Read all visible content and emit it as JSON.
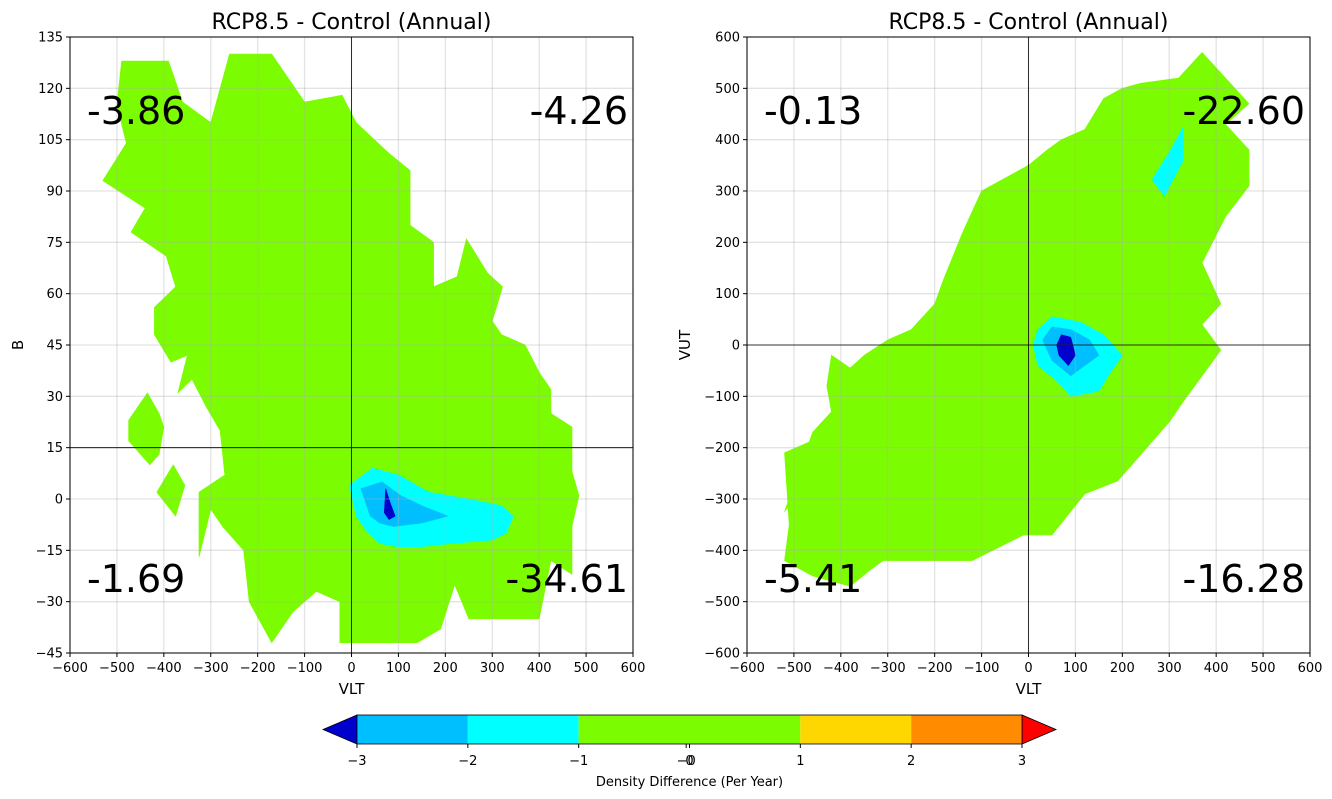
{
  "chart_data": [
    {
      "type": "contour",
      "title": "RCP8.5 - Control (Annual)",
      "xlabel": "VLT",
      "ylabel": "B",
      "xlim": [
        -600,
        600
      ],
      "ylim": [
        -45,
        135
      ],
      "xticks": [
        -600,
        -500,
        -400,
        -300,
        -200,
        -100,
        0,
        100,
        200,
        300,
        400,
        500,
        600
      ],
      "yticks": [
        -45,
        -30,
        -15,
        0,
        15,
        30,
        45,
        60,
        75,
        90,
        105,
        120,
        135
      ],
      "grid": true,
      "reference_lines": {
        "x": 0,
        "y": 15
      },
      "quadrant_values": {
        "top_left": "-3.86",
        "top_right": "-4.26",
        "bottom_left": "-1.69",
        "bottom_right": "-34.61"
      },
      "regions": [
        {
          "level": "-1 to 1",
          "color": "#7cfc00",
          "polygon": [
            [
              -490,
              128
            ],
            [
              -390,
              128
            ],
            [
              -360,
              116
            ],
            [
              -300,
              110
            ],
            [
              -260,
              130
            ],
            [
              -170,
              130
            ],
            [
              -100,
              116
            ],
            [
              -20,
              118
            ],
            [
              10,
              110
            ],
            [
              80,
              101
            ],
            [
              125,
              96
            ],
            [
              125,
              80
            ],
            [
              175,
              75
            ],
            [
              175,
              62
            ],
            [
              225,
              65
            ],
            [
              245,
              76
            ],
            [
              290,
              66
            ],
            [
              322,
              62
            ],
            [
              300,
              52
            ],
            [
              320,
              48
            ],
            [
              370,
              45
            ],
            [
              400,
              37
            ],
            [
              425,
              32
            ],
            [
              425,
              25
            ],
            [
              470,
              21
            ],
            [
              470,
              8
            ],
            [
              485,
              1
            ],
            [
              470,
              -8
            ],
            [
              470,
              -22
            ],
            [
              425,
              -18
            ],
            [
              400,
              -35
            ],
            [
              250,
              -35
            ],
            [
              220,
              -25
            ],
            [
              190,
              -38
            ],
            [
              140,
              -42
            ],
            [
              60,
              -42
            ],
            [
              -25,
              -42
            ],
            [
              -25,
              -30
            ],
            [
              -75,
              -27
            ],
            [
              -125,
              -33
            ],
            [
              -170,
              -42
            ],
            [
              -218,
              -30
            ],
            [
              -230,
              -15
            ],
            [
              -275,
              -8
            ],
            [
              -300,
              -3
            ],
            [
              -325,
              -17
            ],
            [
              -325,
              2
            ],
            [
              -270,
              7
            ],
            [
              -280,
              20
            ],
            [
              -310,
              27
            ],
            [
              -340,
              35
            ],
            [
              -370,
              31
            ],
            [
              -350,
              42
            ],
            [
              -385,
              40
            ],
            [
              -420,
              48
            ],
            [
              -420,
              56
            ],
            [
              -375,
              62
            ],
            [
              -395,
              71
            ],
            [
              -470,
              78
            ],
            [
              -440,
              85
            ],
            [
              -530,
              93
            ],
            [
              -480,
              104
            ],
            [
              -500,
              115
            ]
          ]
        },
        {
          "level": "-1 to 1",
          "color": "#7cfc00",
          "polygon": [
            [
              -435,
              31
            ],
            [
              -410,
              25
            ],
            [
              -400,
              21
            ],
            [
              -410,
              13
            ],
            [
              -430,
              10
            ],
            [
              -475,
              17
            ],
            [
              -475,
              23
            ]
          ]
        },
        {
          "level": "-1 to 1",
          "color": "#7cfc00",
          "polygon": [
            [
              -380,
              10
            ],
            [
              -355,
              4
            ],
            [
              -375,
              -5
            ],
            [
              -415,
              2
            ]
          ]
        },
        {
          "level": "-2 to -1",
          "color": "#00ffff",
          "polygon": [
            [
              -5,
              4
            ],
            [
              45,
              9
            ],
            [
              100,
              7
            ],
            [
              165,
              2
            ],
            [
              250,
              0
            ],
            [
              320,
              -2
            ],
            [
              345,
              -5
            ],
            [
              330,
              -10
            ],
            [
              300,
              -12
            ],
            [
              215,
              -13
            ],
            [
              145,
              -14
            ],
            [
              100,
              -14
            ],
            [
              60,
              -13
            ],
            [
              30,
              -9
            ],
            [
              10,
              -5
            ]
          ]
        },
        {
          "level": "-3 to -2",
          "color": "#00bfff",
          "polygon": [
            [
              20,
              3
            ],
            [
              65,
              5
            ],
            [
              105,
              1
            ],
            [
              150,
              -2
            ],
            [
              205,
              -5
            ],
            [
              150,
              -7
            ],
            [
              90,
              -8
            ],
            [
              60,
              -7
            ],
            [
              40,
              -5
            ]
          ]
        },
        {
          "level": "< -3",
          "color": "#0000cd",
          "polygon": [
            [
              73,
              3
            ],
            [
              82,
              -1
            ],
            [
              93,
              -5
            ],
            [
              80,
              -6
            ],
            [
              70,
              -4
            ]
          ]
        }
      ]
    },
    {
      "type": "contour",
      "title": "RCP8.5 - Control (Annual)",
      "xlabel": "VLT",
      "ylabel": "VUT",
      "xlim": [
        -600,
        600
      ],
      "ylim": [
        -600,
        600
      ],
      "xticks": [
        -600,
        -500,
        -400,
        -300,
        -200,
        -100,
        0,
        100,
        200,
        300,
        400,
        500,
        600
      ],
      "yticks": [
        -600,
        -500,
        -400,
        -300,
        -200,
        -100,
        0,
        100,
        200,
        300,
        400,
        500,
        600
      ],
      "grid": true,
      "reference_lines": {
        "x": 0,
        "y": 0
      },
      "quadrant_values": {
        "top_left": "-0.13",
        "top_right": "-22.60",
        "bottom_left": "-5.41",
        "bottom_right": "-16.28"
      },
      "regions": [
        {
          "level": "-1 to 1",
          "color": "#7cfc00",
          "polygon": [
            [
              -520,
              -325
            ],
            [
              -480,
              -275
            ],
            [
              -420,
              -275
            ],
            [
              -360,
              -230
            ],
            [
              -320,
              -225
            ],
            [
              -380,
              -175
            ],
            [
              -430,
              -175
            ],
            [
              -470,
              -190
            ],
            [
              -520,
              -210
            ],
            [
              -510,
              -350
            ],
            [
              -520,
              -420
            ],
            [
              -460,
              -450
            ],
            [
              -380,
              -470
            ],
            [
              -340,
              -440
            ],
            [
              -310,
              -420
            ],
            [
              -120,
              -420
            ],
            [
              -10,
              -370
            ],
            [
              50,
              -370
            ],
            [
              120,
              -290
            ],
            [
              190,
              -265
            ],
            [
              300,
              -150
            ],
            [
              330,
              -110
            ],
            [
              370,
              -60
            ],
            [
              410,
              -10
            ],
            [
              370,
              40
            ],
            [
              410,
              80
            ],
            [
              370,
              160
            ],
            [
              420,
              250
            ],
            [
              470,
              310
            ],
            [
              470,
              380
            ],
            [
              420,
              430
            ],
            [
              470,
              470
            ],
            [
              370,
              570
            ],
            [
              320,
              520
            ],
            [
              240,
              510
            ],
            [
              200,
              500
            ],
            [
              160,
              480
            ],
            [
              120,
              420
            ],
            [
              70,
              400
            ],
            [
              40,
              380
            ],
            [
              0,
              350
            ],
            [
              -100,
              300
            ],
            [
              -140,
              220
            ],
            [
              -180,
              130
            ],
            [
              -200,
              80
            ],
            [
              -250,
              30
            ],
            [
              -300,
              10
            ],
            [
              -350,
              -20
            ],
            [
              -410,
              -70
            ],
            [
              -430,
              -80
            ],
            [
              -420,
              -130
            ],
            [
              -460,
              -170
            ]
          ]
        },
        {
          "level": "-1 to 1",
          "color": "#7cfc00",
          "polygon": [
            [
              -420,
              -20
            ],
            [
              -340,
              -70
            ],
            [
              -360,
              -100
            ],
            [
              -400,
              -120
            ],
            [
              -430,
              -80
            ]
          ]
        },
        {
          "level": "-2 to -1",
          "color": "#00ffff",
          "polygon": [
            [
              265,
              325
            ],
            [
              300,
              375
            ],
            [
              330,
              425
            ],
            [
              330,
              360
            ],
            [
              290,
              290
            ],
            [
              265,
              320
            ]
          ]
        },
        {
          "level": "-2 to -1",
          "color": "#00ffff",
          "polygon": [
            [
              10,
              0
            ],
            [
              20,
              30
            ],
            [
              50,
              55
            ],
            [
              110,
              45
            ],
            [
              160,
              20
            ],
            [
              200,
              -20
            ],
            [
              170,
              -60
            ],
            [
              150,
              -90
            ],
            [
              90,
              -100
            ],
            [
              60,
              -70
            ],
            [
              20,
              -40
            ]
          ]
        },
        {
          "level": "-3 to -2",
          "color": "#00bfff",
          "polygon": [
            [
              30,
              10
            ],
            [
              50,
              35
            ],
            [
              90,
              30
            ],
            [
              130,
              10
            ],
            [
              150,
              -20
            ],
            [
              120,
              -40
            ],
            [
              90,
              -60
            ],
            [
              50,
              -30
            ]
          ]
        },
        {
          "level": "< -3",
          "color": "#0000cd",
          "polygon": [
            [
              60,
              0
            ],
            [
              70,
              20
            ],
            [
              90,
              15
            ],
            [
              100,
              -20
            ],
            [
              85,
              -40
            ],
            [
              65,
              -20
            ]
          ]
        }
      ]
    }
  ],
  "colorbar": {
    "label": "Density Difference (Per Year)",
    "ticks": [
      "−3",
      "−2",
      "−1",
      "−0",
      "0",
      "1",
      "2",
      "3"
    ],
    "bins": [
      {
        "from": -3,
        "to": -2,
        "color": "#00bfff"
      },
      {
        "from": -2,
        "to": -1,
        "color": "#00ffff"
      },
      {
        "from": -1,
        "to": 1,
        "color": "#7cfc00"
      },
      {
        "from": 1,
        "to": 2,
        "color": "#ffd700"
      },
      {
        "from": 2,
        "to": 3,
        "color": "#ff8c00"
      }
    ],
    "extend_low_color": "#0000cd",
    "extend_high_color": "#ff0000"
  }
}
